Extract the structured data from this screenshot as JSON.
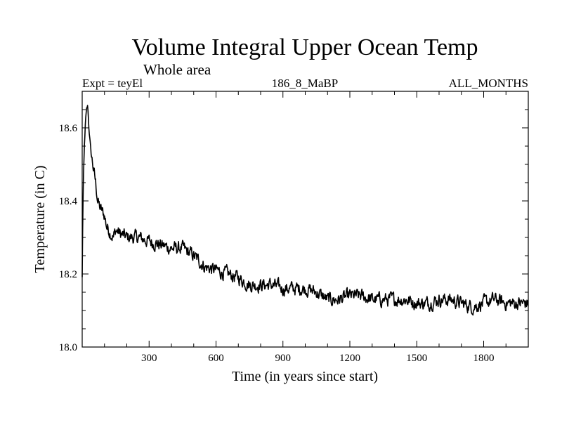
{
  "chart_data": {
    "type": "line",
    "title": "Volume Integral Upper Ocean Temp",
    "subtitle": "Whole area",
    "annotations": {
      "left": "Expt = teyEl",
      "center": "186_8_MaBP",
      "right": "ALL_MONTHS"
    },
    "xlabel": "Time (in years since start)",
    "ylabel": "Temperature (in C)",
    "xlim": [
      0,
      2000
    ],
    "ylim": [
      18.0,
      18.7
    ],
    "x_ticks": [
      300,
      600,
      900,
      1200,
      1500,
      1800
    ],
    "x_tick_labels": [
      "300",
      "600",
      "900",
      "1200",
      "1500",
      "1800"
    ],
    "y_ticks": [
      18.0,
      18.2,
      18.4,
      18.6
    ],
    "y_tick_labels": [
      "18.0",
      "18.2",
      "18.4",
      "18.6"
    ],
    "grid": false,
    "series": [
      {
        "name": "Temperature",
        "color": "#000000",
        "x": [
          0,
          2,
          5,
          10,
          15,
          20,
          25,
          30,
          40,
          50,
          60,
          70,
          80,
          90,
          100,
          110,
          120,
          130,
          140,
          150,
          170,
          200,
          250,
          300,
          350,
          400,
          450,
          500,
          550,
          600,
          650,
          700,
          750,
          800,
          850,
          900,
          950,
          1000,
          1050,
          1100,
          1150,
          1200,
          1250,
          1300,
          1350,
          1400,
          1450,
          1500,
          1550,
          1600,
          1650,
          1700,
          1750,
          1800,
          1850,
          1900,
          1950,
          2000
        ],
        "values": [
          18.19,
          18.32,
          18.45,
          18.55,
          18.62,
          18.65,
          18.66,
          18.6,
          18.53,
          18.49,
          18.45,
          18.4,
          18.38,
          18.37,
          18.36,
          18.33,
          18.32,
          18.31,
          18.3,
          18.32,
          18.31,
          18.3,
          18.3,
          18.29,
          18.28,
          18.27,
          18.27,
          18.25,
          18.22,
          18.21,
          18.2,
          18.19,
          18.17,
          18.17,
          18.17,
          18.16,
          18.16,
          18.16,
          18.15,
          18.13,
          18.13,
          18.14,
          18.14,
          18.13,
          18.13,
          18.13,
          18.13,
          18.12,
          18.12,
          18.13,
          18.13,
          18.12,
          18.11,
          18.12,
          18.13,
          18.12,
          18.12,
          18.12
        ]
      }
    ]
  }
}
